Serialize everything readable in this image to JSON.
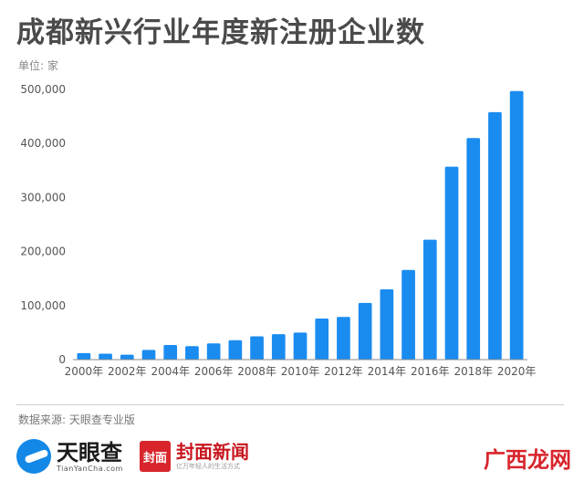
{
  "header": {
    "title": "成都新兴行业年度新注册企业数",
    "unit": "单位: 家"
  },
  "footer": {
    "source": "数据来源: 天眼查专业版",
    "logo_tianyancha": "天眼查",
    "logo_tianyancha_url": "TianYanCha.com",
    "logo_fengmian_badge": "封面",
    "logo_fengmian": "封面新闻",
    "corner_mark": "广西龙网",
    "logo_fengmian_slogan": "亿万年轻人的生活方式"
  },
  "colors": {
    "bar": "#1a8cf0",
    "grid": "#e6e6e6",
    "axis": "#888888"
  },
  "chart_data": {
    "type": "bar",
    "title": "成都新兴行业年度新注册企业数",
    "ylabel": "单位: 家",
    "ylim": [
      0,
      500000
    ],
    "yticks": [
      0,
      100000,
      200000,
      300000,
      400000,
      500000
    ],
    "ytick_labels": [
      "0",
      "100,000",
      "200,000",
      "300,000",
      "400,000",
      "500,000"
    ],
    "categories": [
      "2000年",
      "2001年",
      "2002年",
      "2003年",
      "2004年",
      "2005年",
      "2006年",
      "2007年",
      "2008年",
      "2009年",
      "2010年",
      "2011年",
      "2012年",
      "2013年",
      "2014年",
      "2015年",
      "2016年",
      "2017年",
      "2018年",
      "2019年",
      "2020年"
    ],
    "xtick_labels": [
      "2000年",
      "",
      "2002年",
      "",
      "2004年",
      "",
      "2006年",
      "",
      "2008年",
      "",
      "2010年",
      "",
      "2012年",
      "",
      "2014年",
      "",
      "2016年",
      "",
      "2018年",
      "",
      "2020年"
    ],
    "values": [
      12000,
      11000,
      9000,
      18000,
      27000,
      25000,
      30000,
      36000,
      43000,
      47000,
      50000,
      76000,
      79000,
      105000,
      130000,
      166000,
      222000,
      357000,
      410000,
      458000,
      497000
    ],
    "grid": false
  }
}
